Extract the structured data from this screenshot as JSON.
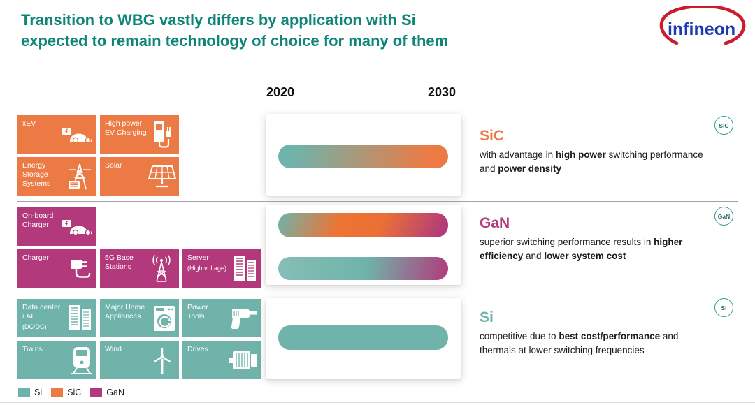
{
  "title": {
    "line1": "Transition to WBG vastly differs by application with Si",
    "line2": "expected to remain technology of choice for many of them"
  },
  "logo": {
    "text": "infineon"
  },
  "timeline": {
    "start": "2020",
    "end": "2030"
  },
  "colors": {
    "si": "#6FB3AA",
    "sic": "#EC7A45",
    "gan": "#B23A7C",
    "title_teal": "#0E8577",
    "badge_ring": "#2F9D8E",
    "logo_blue": "#1C3BB0",
    "logo_red": "#CC1C2E"
  },
  "groups": [
    {
      "id": "sic",
      "heading": "SiC",
      "badge": "SiC",
      "desc": [
        {
          "t": "with advantage in "
        },
        {
          "t": "high power",
          "b": true
        },
        {
          "t": " switching performance and "
        },
        {
          "t": "power density",
          "b": true
        }
      ],
      "bars": [
        "si-to-sic"
      ],
      "tiles": [
        {
          "label": "xEV",
          "icon": "car-icon",
          "row": 1,
          "col": 1
        },
        {
          "label": "High power\nEV Charging",
          "icon": "ev-charging-icon",
          "row": 1,
          "col": 2
        },
        {
          "label": "Energy\nStorage\nSystems",
          "icon": "power-tower-icon",
          "row": 2,
          "col": 1
        },
        {
          "label": "Solar",
          "icon": "solar-panel-icon",
          "row": 2,
          "col": 2
        }
      ]
    },
    {
      "id": "gan",
      "heading": "GaN",
      "badge": "GaN",
      "desc": [
        {
          "t": "superior switching performance results in "
        },
        {
          "t": "higher efficiency",
          "b": true
        },
        {
          "t": " and "
        },
        {
          "t": "lower system cost",
          "b": true
        }
      ],
      "bars": [
        "si-sic-gan",
        "si-to-gan"
      ],
      "tiles": [
        {
          "label": "On-board\nCharger",
          "icon": "car-icon",
          "row": 1,
          "col": 1
        },
        {
          "label": "Charger",
          "icon": "charger-icon",
          "row": 2,
          "col": 1
        },
        {
          "label": "5G Base\nStations",
          "icon": "antenna-icon",
          "row": 2,
          "col": 2
        },
        {
          "label": "Server",
          "sub": "(High voltage)",
          "icon": "server-icon",
          "row": 2,
          "col": 3
        }
      ]
    },
    {
      "id": "si",
      "heading": "Si",
      "badge": "Si",
      "desc": [
        {
          "t": "competitive due to "
        },
        {
          "t": "best cost/performance",
          "b": true
        },
        {
          "t": " and thermals at lower switching frequencies"
        }
      ],
      "bars": [
        "si-solid"
      ],
      "tiles": [
        {
          "label": "Data center\n/ AI",
          "sub": "(DC/DC)",
          "icon": "server-icon",
          "row": 1,
          "col": 1
        },
        {
          "label": "Major Home\nAppliances",
          "icon": "washing-machine-icon",
          "row": 1,
          "col": 2
        },
        {
          "label": "Power\nTools",
          "icon": "drill-icon",
          "row": 1,
          "col": 3
        },
        {
          "label": "Trains",
          "icon": "train-icon",
          "row": 2,
          "col": 1
        },
        {
          "label": "Wind",
          "icon": "wind-turbine-icon",
          "row": 2,
          "col": 2
        },
        {
          "label": "Drives",
          "icon": "motor-icon",
          "row": 2,
          "col": 3
        }
      ]
    }
  ],
  "legend": [
    {
      "id": "si",
      "label": "Si"
    },
    {
      "id": "sic",
      "label": "SiC"
    },
    {
      "id": "gan",
      "label": "GaN"
    }
  ]
}
